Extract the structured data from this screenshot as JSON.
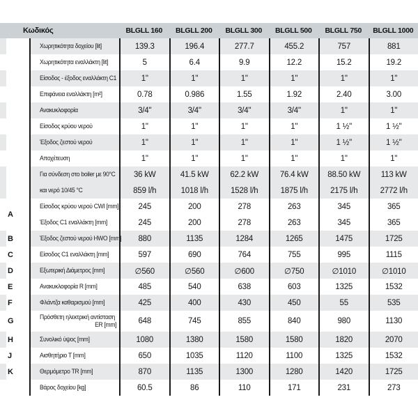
{
  "colors": {
    "header_bg": "#cbd1d5",
    "stripe_bg": "#e6e8ea",
    "line": "#1a1a1a",
    "text": "#1b1b1b"
  },
  "header": {
    "code_label": "Κωδικός",
    "models": [
      "BLGLL 160",
      "BLGLL 200",
      "BLGLL 300",
      "BLGLL 500",
      "BLGLL 750",
      "BLGLL 1000"
    ]
  },
  "blocks": [
    {
      "letter": "",
      "lines": [
        {
          "label": "Χωρητικότητα δοχείου [lit]",
          "values": [
            "139.3",
            "196.4",
            "277.7",
            "455.2",
            "757",
            "881"
          ]
        }
      ]
    },
    {
      "letter": "",
      "lines": [
        {
          "label": "Χωρητικότητα εναλλάκτη [lit]",
          "values": [
            "5",
            "6.4",
            "9.9",
            "12.2",
            "15.2",
            "19.2"
          ]
        }
      ]
    },
    {
      "letter": "",
      "lines": [
        {
          "label": "Είσοδος - έξοδος εναλλάκτη C1",
          "values": [
            "1\"",
            "1\"",
            "1\"",
            "1\"",
            "1\"",
            "1\""
          ]
        }
      ]
    },
    {
      "letter": "",
      "lines": [
        {
          "label": "Επιφάνεια εναλλάκτη [m²]",
          "values": [
            "0.78",
            "0.986",
            "1.55",
            "1.92",
            "2.40",
            "3.00"
          ]
        }
      ]
    },
    {
      "letter": "",
      "lines": [
        {
          "label": "Ανακυκλοφορία",
          "values": [
            "3/4\"",
            "3/4\"",
            "3/4\"",
            "3/4\"",
            "1\"",
            "1\""
          ]
        }
      ]
    },
    {
      "letter": "",
      "lines": [
        {
          "label": "Είσοδος κρύου νερού",
          "values": [
            "1\"",
            "1\"",
            "1\"",
            "1\"",
            "1 ½\"",
            "1 ½\""
          ]
        }
      ]
    },
    {
      "letter": "",
      "lines": [
        {
          "label": "Έξοδος ζεστού νερού",
          "values": [
            "1\"",
            "1\"",
            "1\"",
            "1\"",
            "1 ½\"",
            "1 ½\""
          ]
        }
      ]
    },
    {
      "letter": "",
      "lines": [
        {
          "label": "Αποχέτευση",
          "values": [
            "1\"",
            "1\"",
            "1\"",
            "1\"",
            "1\"",
            "1\""
          ]
        }
      ]
    },
    {
      "letter": "",
      "lines": [
        {
          "label": "Για σύνδεση στο boiler με 90°C",
          "values": [
            "36 kW",
            "41.5 kW",
            "62.2 kW",
            "76.4 kW",
            "88.50 kW",
            "113 kW"
          ]
        },
        {
          "label": "και νερό 10/45 °C",
          "values": [
            "859 l/h",
            "1018 l/h",
            "1528 l/h",
            "1875 l/h",
            "2175 l/h",
            "2772 l/h"
          ]
        }
      ]
    },
    {
      "letter": "A",
      "lines": [
        {
          "label": "Είσοδος κρύου νερού CWI [mm]",
          "values": [
            "245",
            "200",
            "278",
            "263",
            "345",
            "365"
          ]
        },
        {
          "label": "Έξοδος C1 εναλλάκτη [mm]",
          "values": [
            "245",
            "200",
            "278",
            "263",
            "345",
            "365"
          ]
        }
      ]
    },
    {
      "letter": "B",
      "lines": [
        {
          "label": "Έξοδος ζεστού νερού HWO [mm]",
          "values": [
            "880",
            "1135",
            "1284",
            "1265",
            "1475",
            "1725"
          ]
        }
      ]
    },
    {
      "letter": "C",
      "lines": [
        {
          "label": "Είσοδος C1 εναλλάκτη [mm]",
          "values": [
            "597",
            "690",
            "764",
            "755",
            "995",
            "1115"
          ]
        }
      ]
    },
    {
      "letter": "D",
      "lines": [
        {
          "label": "Εξωτερική Διάμετρος [mm]",
          "values": [
            "∅560",
            "∅560",
            "∅600",
            "∅750",
            "∅1010",
            "∅1010"
          ]
        }
      ]
    },
    {
      "letter": "E",
      "lines": [
        {
          "label": "Ανακυκλοφορία R [mm]",
          "values": [
            "485",
            "540",
            "638",
            "603",
            "1325",
            "1532"
          ]
        }
      ]
    },
    {
      "letter": "F",
      "lines": [
        {
          "label": "Φλάντζα καθαρισμού [mm]",
          "values": [
            "425",
            "400",
            "430",
            "450",
            "55",
            "535"
          ]
        }
      ]
    },
    {
      "letter": "G",
      "lines": [
        {
          "label": "Πρόσθετη ηλεκτρική αντίσταση",
          "sublabel": "ER [mm]",
          "values": [
            "648",
            "745",
            "855",
            "840",
            "980",
            "1130"
          ]
        }
      ]
    },
    {
      "letter": "H",
      "lines": [
        {
          "label": "Συνολικό ύψος [mm]",
          "values": [
            "1080",
            "1380",
            "1580",
            "1580",
            "1820",
            "2070"
          ]
        }
      ]
    },
    {
      "letter": "J",
      "lines": [
        {
          "label": "Αισθητήριο  T [mm]",
          "values": [
            "650",
            "1035",
            "1120",
            "1100",
            "1325",
            "1532"
          ]
        }
      ]
    },
    {
      "letter": "K",
      "lines": [
        {
          "label": "Θερμόμετρο TR [mm]",
          "values": [
            "870",
            "1135",
            "1300",
            "1280",
            "1420",
            "1725"
          ]
        }
      ]
    },
    {
      "letter": "",
      "lines": [
        {
          "label": "Βάρος δοχείου [kg]",
          "values": [
            "60.5",
            "86",
            "110",
            "171",
            "231",
            "273"
          ]
        }
      ]
    }
  ]
}
